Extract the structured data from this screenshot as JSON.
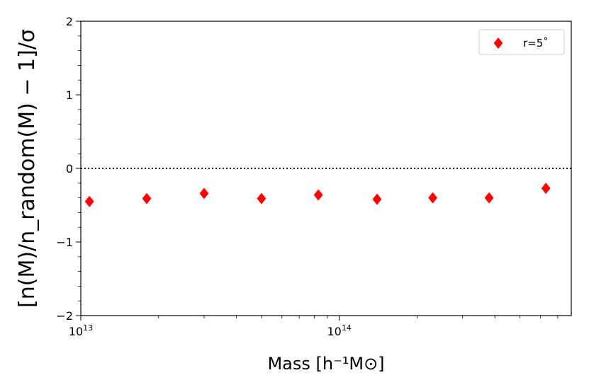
{
  "chart_data": {
    "type": "scatter",
    "xscale": "log",
    "xlim": [
      10000000000000.0,
      790000000000000.0
    ],
    "ylim": [
      -2,
      2
    ],
    "xlabel": "Mass [h⁻¹M⊙]",
    "ylabel": "[n(M)/n_random(M) − 1]/σ",
    "x_ticks": [
      {
        "value": 10000000000000.0,
        "label": "10",
        "exp": "13"
      },
      {
        "value": 100000000000000.0,
        "label": "10",
        "exp": "14"
      }
    ],
    "y_ticks": [
      -2,
      -1,
      0,
      1,
      2
    ],
    "y_tick_labels": [
      "−2",
      "−1",
      "0",
      "1",
      "2"
    ],
    "reference_line": {
      "y": 0,
      "style": "dotted",
      "color": "#000000"
    },
    "legend": {
      "position": "top-right",
      "entries": [
        "r=5˚"
      ]
    },
    "series": [
      {
        "name": "r=5˚",
        "marker": "diamond",
        "color": "#ff0000",
        "x": [
          10800000000000.0,
          18000000000000.0,
          30000000000000.0,
          50000000000000.0,
          83000000000000.0,
          140000000000000.0,
          230000000000000.0,
          380000000000000.0,
          630000000000000.0
        ],
        "y": [
          -0.45,
          -0.41,
          -0.34,
          -0.41,
          -0.36,
          -0.42,
          -0.4,
          -0.4,
          -0.27
        ]
      }
    ]
  }
}
